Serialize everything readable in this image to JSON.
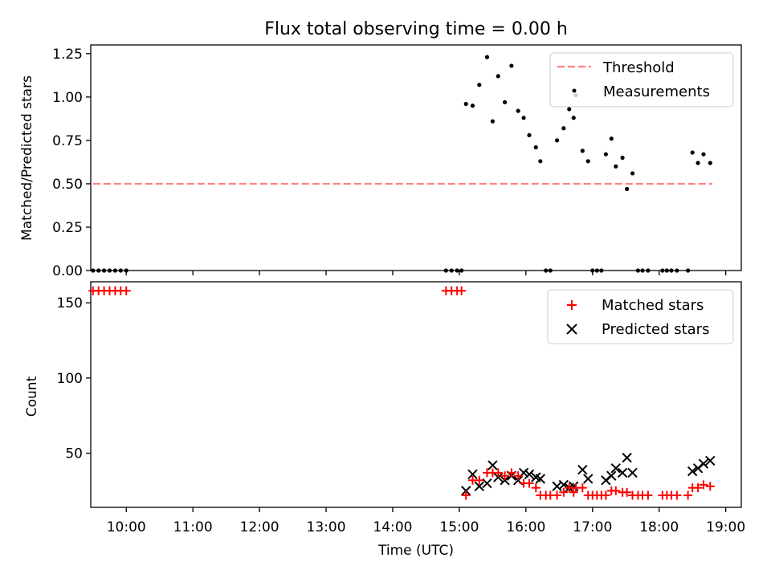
{
  "chart_data": [
    {
      "type": "scatter",
      "title": "Flux total observing time = 0.00 h",
      "xlabel": "",
      "ylabel": "Matched/Predicted stars",
      "xlim": [
        "09:28",
        "19:14"
      ],
      "ylim": [
        0,
        1.3
      ],
      "yticks": [
        0.0,
        0.25,
        0.5,
        0.75,
        1.0,
        1.25
      ],
      "ytick_labels": [
        "0.00",
        "0.25",
        "0.50",
        "0.75",
        "1.00",
        "1.25"
      ],
      "xtick_labels": [],
      "legend_position": "top-right",
      "series": [
        {
          "name": "Threshold",
          "kind": "dashed-line",
          "color": "#ff8080",
          "x": [
            "09:30",
            "18:48"
          ],
          "y": [
            0.5,
            0.5
          ]
        },
        {
          "name": "Measurements",
          "kind": "dots",
          "color": "#000000",
          "points": [
            [
              "09:30",
              0
            ],
            [
              "09:35",
              0
            ],
            [
              "09:40",
              0
            ],
            [
              "09:45",
              0
            ],
            [
              "09:50",
              0
            ],
            [
              "09:55",
              0
            ],
            [
              "10:00",
              0
            ],
            [
              "14:48",
              0
            ],
            [
              "14:53",
              0
            ],
            [
              "14:58",
              0
            ],
            [
              "15:02",
              0
            ],
            [
              "15:06",
              0.96
            ],
            [
              "15:12",
              0.95
            ],
            [
              "15:18",
              1.07
            ],
            [
              "15:25",
              1.23
            ],
            [
              "15:30",
              0.86
            ],
            [
              "15:35",
              1.12
            ],
            [
              "15:41",
              0.97
            ],
            [
              "15:47",
              1.18
            ],
            [
              "15:53",
              0.92
            ],
            [
              "15:58",
              0.88
            ],
            [
              "16:03",
              0.78
            ],
            [
              "16:09",
              0.71
            ],
            [
              "16:13",
              0.63
            ],
            [
              "16:18",
              0
            ],
            [
              "16:22",
              0
            ],
            [
              "16:28",
              0.75
            ],
            [
              "16:34",
              0.82
            ],
            [
              "16:39",
              0.93
            ],
            [
              "16:43",
              0.88
            ],
            [
              "16:45",
              1.01
            ],
            [
              "16:51",
              0.69
            ],
            [
              "16:56",
              0.63
            ],
            [
              "17:00",
              0
            ],
            [
              "17:04",
              0
            ],
            [
              "17:08",
              0
            ],
            [
              "17:12",
              0.67
            ],
            [
              "17:17",
              0.76
            ],
            [
              "17:21",
              0.6
            ],
            [
              "17:27",
              0.65
            ],
            [
              "17:31",
              0.47
            ],
            [
              "17:36",
              0.56
            ],
            [
              "17:41",
              0
            ],
            [
              "17:45",
              0
            ],
            [
              "17:50",
              0
            ],
            [
              "18:03",
              0
            ],
            [
              "18:07",
              0
            ],
            [
              "18:11",
              0
            ],
            [
              "18:16",
              0
            ],
            [
              "18:26",
              0
            ],
            [
              "18:30",
              0.68
            ],
            [
              "18:35",
              0.62
            ],
            [
              "18:40",
              0.67
            ],
            [
              "18:46",
              0.62
            ]
          ]
        }
      ]
    },
    {
      "type": "scatter",
      "title": "",
      "xlabel": "Time (UTC)",
      "ylabel": "Count",
      "xlim": [
        "09:28",
        "19:14"
      ],
      "ylim": [
        14,
        164
      ],
      "yticks": [
        50,
        100,
        150
      ],
      "ytick_labels": [
        "50",
        "100",
        "150"
      ],
      "xticks": [
        "10:00",
        "11:00",
        "12:00",
        "13:00",
        "14:00",
        "15:00",
        "16:00",
        "17:00",
        "18:00",
        "19:00"
      ],
      "xtick_labels": [
        "10:00",
        "11:00",
        "12:00",
        "13:00",
        "14:00",
        "15:00",
        "16:00",
        "17:00",
        "18:00",
        "19:00"
      ],
      "legend_position": "top-right",
      "series": [
        {
          "name": "Matched stars",
          "kind": "plus",
          "color": "#ff0000",
          "points": [
            [
              "09:30",
              158
            ],
            [
              "09:35",
              158
            ],
            [
              "09:40",
              158
            ],
            [
              "09:45",
              158
            ],
            [
              "09:50",
              158
            ],
            [
              "09:55",
              158
            ],
            [
              "10:00",
              158
            ],
            [
              "14:48",
              158
            ],
            [
              "14:53",
              158
            ],
            [
              "14:58",
              158
            ],
            [
              "15:02",
              158
            ],
            [
              "15:06",
              22
            ],
            [
              "15:12",
              32
            ],
            [
              "15:18",
              32
            ],
            [
              "15:25",
              37
            ],
            [
              "15:30",
              37
            ],
            [
              "15:35",
              37
            ],
            [
              "15:41",
              35
            ],
            [
              "15:47",
              37
            ],
            [
              "15:53",
              35
            ],
            [
              "15:58",
              30
            ],
            [
              "16:03",
              30
            ],
            [
              "16:09",
              27
            ],
            [
              "16:13",
              22
            ],
            [
              "16:18",
              22
            ],
            [
              "16:22",
              22
            ],
            [
              "16:28",
              22
            ],
            [
              "16:34",
              24
            ],
            [
              "16:39",
              27
            ],
            [
              "16:43",
              24
            ],
            [
              "16:45",
              27
            ],
            [
              "16:51",
              27
            ],
            [
              "16:56",
              22
            ],
            [
              "17:00",
              22
            ],
            [
              "17:04",
              22
            ],
            [
              "17:08",
              22
            ],
            [
              "17:12",
              22
            ],
            [
              "17:17",
              25
            ],
            [
              "17:21",
              25
            ],
            [
              "17:27",
              24
            ],
            [
              "17:31",
              24
            ],
            [
              "17:36",
              22
            ],
            [
              "17:41",
              22
            ],
            [
              "17:45",
              22
            ],
            [
              "17:50",
              22
            ],
            [
              "18:03",
              22
            ],
            [
              "18:07",
              22
            ],
            [
              "18:11",
              22
            ],
            [
              "18:16",
              22
            ],
            [
              "18:26",
              22
            ],
            [
              "18:30",
              27
            ],
            [
              "18:35",
              27
            ],
            [
              "18:40",
              29
            ],
            [
              "18:46",
              28
            ]
          ]
        },
        {
          "name": "Predicted stars",
          "kind": "cross",
          "color": "#000000",
          "points": [
            [
              "15:06",
              25
            ],
            [
              "15:12",
              36
            ],
            [
              "15:18",
              28
            ],
            [
              "15:25",
              30
            ],
            [
              "15:30",
              42
            ],
            [
              "15:35",
              34
            ],
            [
              "15:41",
              32
            ],
            [
              "15:47",
              35
            ],
            [
              "15:53",
              32
            ],
            [
              "15:58",
              37
            ],
            [
              "16:03",
              36
            ],
            [
              "16:09",
              34
            ],
            [
              "16:13",
              33
            ],
            [
              "16:28",
              28
            ],
            [
              "16:34",
              29
            ],
            [
              "16:39",
              27
            ],
            [
              "16:43",
              28
            ],
            [
              "16:51",
              39
            ],
            [
              "16:56",
              33
            ],
            [
              "17:12",
              32
            ],
            [
              "17:17",
              35
            ],
            [
              "17:21",
              40
            ],
            [
              "17:27",
              37
            ],
            [
              "17:31",
              47
            ],
            [
              "17:36",
              37
            ],
            [
              "18:30",
              38
            ],
            [
              "18:35",
              40
            ],
            [
              "18:40",
              43
            ],
            [
              "18:46",
              45
            ]
          ]
        }
      ]
    }
  ]
}
